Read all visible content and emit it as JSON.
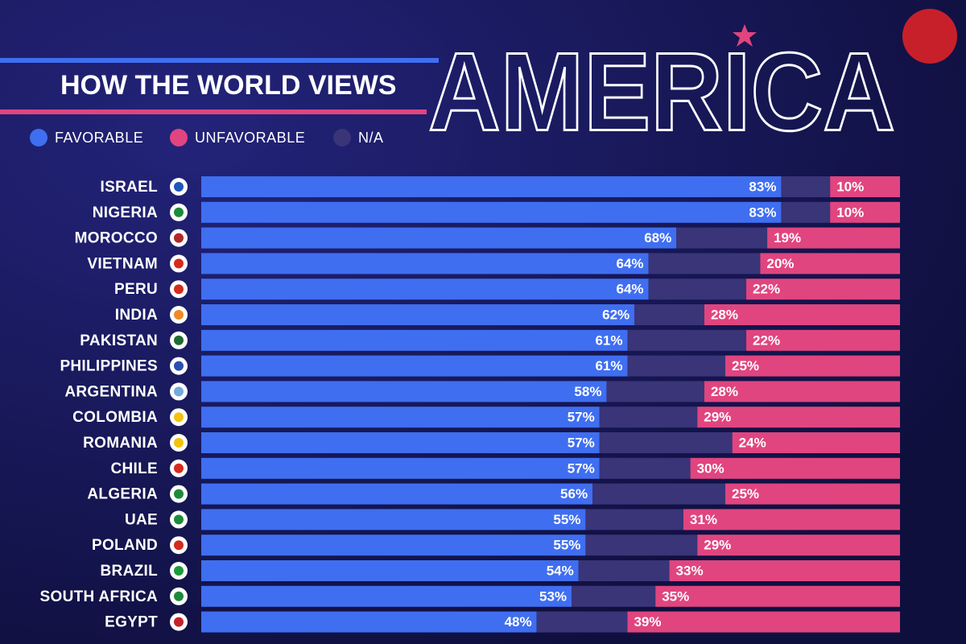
{
  "chart_data": {
    "type": "stacked-bar",
    "title": "HOW THE WORLD VIEWS",
    "subtitle": "AMERICA",
    "categories": [
      "ISRAEL",
      "NIGERIA",
      "MOROCCO",
      "VIETNAM",
      "PERU",
      "INDIA",
      "PAKISTAN",
      "PHILIPPINES",
      "ARGENTINA",
      "COLOMBIA",
      "ROMANIA",
      "CHILE",
      "ALGERIA",
      "UAE",
      "POLAND",
      "BRAZIL",
      "SOUTH AFRICA",
      "EGYPT"
    ],
    "series": [
      {
        "name": "FAVORABLE",
        "color": "#3f6ef0",
        "values": [
          83,
          83,
          68,
          64,
          64,
          62,
          61,
          61,
          58,
          57,
          57,
          57,
          56,
          55,
          55,
          54,
          53,
          48
        ],
        "value_labels": [
          "83%",
          "83%",
          "68%",
          "64%",
          "64%",
          "62%",
          "61%",
          "61%",
          "58%",
          "57%",
          "57%",
          "57%",
          "56%",
          "55%",
          "55%",
          "54%",
          "53%",
          "48%"
        ]
      },
      {
        "name": "N/A",
        "color": "#3a3478",
        "values": [
          7,
          7,
          13,
          16,
          14,
          10,
          17,
          14,
          14,
          14,
          19,
          13,
          19,
          14,
          16,
          13,
          12,
          13
        ]
      },
      {
        "name": "UNFAVORABLE",
        "color": "#e0457f",
        "values": [
          10,
          10,
          19,
          20,
          22,
          28,
          22,
          25,
          28,
          29,
          24,
          30,
          25,
          31,
          29,
          33,
          35,
          39
        ],
        "value_labels": [
          "10%",
          "10%",
          "19%",
          "20%",
          "22%",
          "28%",
          "22%",
          "25%",
          "28%",
          "29%",
          "24%",
          "30%",
          "25%",
          "31%",
          "29%",
          "33%",
          "35%",
          "39%"
        ]
      }
    ],
    "legend_order": [
      0,
      2,
      1
    ]
  }
}
